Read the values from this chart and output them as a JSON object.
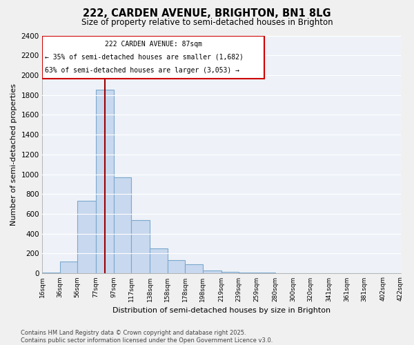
{
  "title": "222, CARDEN AVENUE, BRIGHTON, BN1 8LG",
  "subtitle": "Size of property relative to semi-detached houses in Brighton",
  "xlabel": "Distribution of semi-detached houses by size in Brighton",
  "ylabel": "Number of semi-detached properties",
  "property_size": 87,
  "property_label": "222 CARDEN AVENUE: 87sqm",
  "annotation_line1": "← 35% of semi-detached houses are smaller (1,682)",
  "annotation_line2": "63% of semi-detached houses are larger (3,053) →",
  "footer_line1": "Contains HM Land Registry data © Crown copyright and database right 2025.",
  "footer_line2": "Contains public sector information licensed under the Open Government Licence v3.0.",
  "bin_edges": [
    16,
    36,
    56,
    77,
    97,
    117,
    138,
    158,
    178,
    198,
    219,
    239,
    259,
    280,
    300,
    320,
    341,
    361,
    381,
    402,
    422
  ],
  "bin_labels": [
    "16sqm",
    "36sqm",
    "56sqm",
    "77sqm",
    "97sqm",
    "117sqm",
    "138sqm",
    "158sqm",
    "178sqm",
    "198sqm",
    "219sqm",
    "239sqm",
    "259sqm",
    "280sqm",
    "300sqm",
    "320sqm",
    "341sqm",
    "361sqm",
    "381sqm",
    "402sqm",
    "422sqm"
  ],
  "counts": [
    10,
    120,
    730,
    1850,
    970,
    540,
    250,
    130,
    90,
    30,
    15,
    8,
    5,
    3,
    2,
    1,
    0,
    0,
    0,
    0
  ],
  "bar_fill": "#c8d8ee",
  "bar_edge": "#7aa8cc",
  "line_color": "#990000",
  "box_edge_color": "#cc0000",
  "plot_bg": "#eef2f8",
  "fig_bg": "#f0f0f0",
  "grid_color": "#ffffff",
  "ylim": [
    0,
    2400
  ],
  "yticks": [
    0,
    200,
    400,
    600,
    800,
    1000,
    1200,
    1400,
    1600,
    1800,
    2000,
    2200,
    2400
  ]
}
